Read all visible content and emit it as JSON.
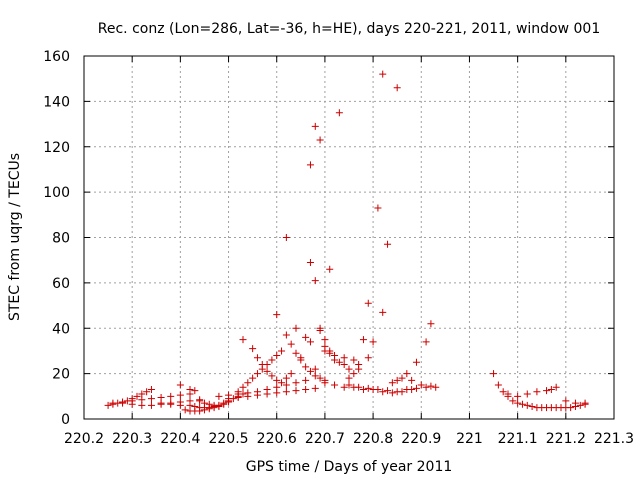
{
  "chart_data": {
    "type": "scatter",
    "title": "Rec. conz (Lon=286, Lat=-36, h=HE), days 220-221, 2011, window 001",
    "xlabel": "GPS time / Days of year 2011",
    "ylabel": "STEC from uqrg / TECUs",
    "xlim": [
      220.2,
      221.3
    ],
    "ylim": [
      0,
      160
    ],
    "x_ticks": [
      220.2,
      220.3,
      220.4,
      220.5,
      220.6,
      220.7,
      220.8,
      220.9,
      221.0,
      221.1,
      221.2,
      221.3
    ],
    "x_tick_labels": [
      "220.2",
      "220.3",
      "220.4",
      "220.5",
      "220.6",
      "220.7",
      "220.8",
      "220.9",
      "221",
      "221.1",
      "221.2",
      "221.3"
    ],
    "y_ticks": [
      0,
      20,
      40,
      60,
      80,
      100,
      120,
      140,
      160
    ],
    "y_tick_labels": [
      "0",
      "20",
      "40",
      "60",
      "80",
      "100",
      "120",
      "140",
      "160"
    ],
    "grid": true,
    "marker": "+",
    "color": "#cc0000",
    "series": [
      {
        "points": [
          [
            220.25,
            6
          ],
          [
            220.26,
            6.5
          ],
          [
            220.27,
            7
          ],
          [
            220.28,
            7.5
          ],
          [
            220.29,
            8
          ],
          [
            220.3,
            9
          ],
          [
            220.31,
            10
          ],
          [
            220.32,
            11
          ],
          [
            220.33,
            12
          ],
          [
            220.34,
            13
          ],
          [
            220.26,
            7
          ],
          [
            220.28,
            7
          ],
          [
            220.3,
            6.5
          ],
          [
            220.32,
            6
          ],
          [
            220.34,
            6
          ],
          [
            220.36,
            6.5
          ],
          [
            220.38,
            7
          ],
          [
            220.4,
            7.5
          ],
          [
            220.42,
            8
          ],
          [
            220.44,
            8.5
          ],
          [
            220.3,
            8
          ],
          [
            220.32,
            8.5
          ],
          [
            220.34,
            9
          ],
          [
            220.36,
            9.5
          ],
          [
            220.38,
            10
          ],
          [
            220.4,
            10.5
          ],
          [
            220.42,
            11
          ],
          [
            220.43,
            12.5
          ],
          [
            220.4,
            15
          ],
          [
            220.42,
            13
          ],
          [
            220.36,
            7
          ],
          [
            220.38,
            6.5
          ],
          [
            220.4,
            6
          ],
          [
            220.42,
            6
          ],
          [
            220.43,
            5.5
          ],
          [
            220.44,
            5
          ],
          [
            220.45,
            5
          ],
          [
            220.46,
            5
          ],
          [
            220.47,
            5.5
          ],
          [
            220.48,
            6
          ],
          [
            220.41,
            4
          ],
          [
            220.42,
            3.5
          ],
          [
            220.43,
            3.5
          ],
          [
            220.44,
            3.5
          ],
          [
            220.45,
            4
          ],
          [
            220.46,
            4.5
          ],
          [
            220.47,
            5
          ],
          [
            220.48,
            5.5
          ],
          [
            220.49,
            6.5
          ],
          [
            220.5,
            7.5
          ],
          [
            220.44,
            8
          ],
          [
            220.45,
            7
          ],
          [
            220.46,
            6.5
          ],
          [
            220.47,
            6
          ],
          [
            220.48,
            6
          ],
          [
            220.49,
            7
          ],
          [
            220.5,
            8
          ],
          [
            220.51,
            9
          ],
          [
            220.52,
            10
          ],
          [
            220.53,
            11
          ],
          [
            220.48,
            10
          ],
          [
            220.5,
            10.5
          ],
          [
            220.52,
            11
          ],
          [
            220.54,
            11.5
          ],
          [
            220.56,
            12
          ],
          [
            220.58,
            13
          ],
          [
            220.6,
            14
          ],
          [
            220.62,
            15
          ],
          [
            220.64,
            16
          ],
          [
            220.66,
            17
          ],
          [
            220.5,
            9
          ],
          [
            220.52,
            9.5
          ],
          [
            220.54,
            10
          ],
          [
            220.56,
            10.5
          ],
          [
            220.58,
            11
          ],
          [
            220.6,
            11.5
          ],
          [
            220.62,
            12
          ],
          [
            220.64,
            12.5
          ],
          [
            220.66,
            13
          ],
          [
            220.68,
            13.5
          ],
          [
            220.52,
            12
          ],
          [
            220.53,
            14
          ],
          [
            220.54,
            16
          ],
          [
            220.55,
            18
          ],
          [
            220.56,
            20
          ],
          [
            220.57,
            22
          ],
          [
            220.58,
            24
          ],
          [
            220.59,
            26
          ],
          [
            220.6,
            28
          ],
          [
            220.61,
            30
          ],
          [
            220.53,
            35
          ],
          [
            220.55,
            31
          ],
          [
            220.56,
            27
          ],
          [
            220.57,
            24
          ],
          [
            220.58,
            21
          ],
          [
            220.59,
            19
          ],
          [
            220.6,
            17
          ],
          [
            220.61,
            16
          ],
          [
            220.62,
            18
          ],
          [
            220.63,
            20
          ],
          [
            220.6,
            46
          ],
          [
            220.62,
            37
          ],
          [
            220.63,
            33
          ],
          [
            220.64,
            29
          ],
          [
            220.65,
            26
          ],
          [
            220.66,
            23
          ],
          [
            220.67,
            21
          ],
          [
            220.68,
            19
          ],
          [
            220.69,
            18
          ],
          [
            220.7,
            17
          ],
          [
            220.62,
            80
          ],
          [
            220.64,
            40
          ],
          [
            220.65,
            27
          ],
          [
            220.66,
            36
          ],
          [
            220.67,
            34
          ],
          [
            220.68,
            22
          ],
          [
            220.69,
            40
          ],
          [
            220.7,
            35
          ],
          [
            220.71,
            30
          ],
          [
            220.72,
            28
          ],
          [
            220.67,
            112
          ],
          [
            220.68,
            61
          ],
          [
            220.69,
            39
          ],
          [
            220.7,
            30
          ],
          [
            220.71,
            29
          ],
          [
            220.72,
            26
          ],
          [
            220.73,
            25
          ],
          [
            220.74,
            24
          ],
          [
            220.75,
            22
          ],
          [
            220.76,
            20
          ],
          [
            220.67,
            69
          ],
          [
            220.68,
            129
          ],
          [
            220.69,
            123
          ],
          [
            220.7,
            32
          ],
          [
            220.71,
            66
          ],
          [
            220.73,
            135
          ],
          [
            220.74,
            27
          ],
          [
            220.75,
            18
          ],
          [
            220.76,
            26
          ],
          [
            220.77,
            24
          ],
          [
            220.7,
            16
          ],
          [
            220.72,
            15
          ],
          [
            220.74,
            14
          ],
          [
            220.76,
            14
          ],
          [
            220.78,
            13
          ],
          [
            220.8,
            13
          ],
          [
            220.82,
            12
          ],
          [
            220.84,
            11.5
          ],
          [
            220.86,
            12
          ],
          [
            220.88,
            13
          ],
          [
            220.78,
            35
          ],
          [
            220.79,
            51
          ],
          [
            220.8,
            34
          ],
          [
            220.81,
            93
          ],
          [
            220.82,
            47
          ],
          [
            220.82,
            152
          ],
          [
            220.83,
            77
          ],
          [
            220.85,
            146
          ],
          [
            220.77,
            22
          ],
          [
            220.79,
            27
          ],
          [
            220.84,
            16
          ],
          [
            220.85,
            17
          ],
          [
            220.86,
            18
          ],
          [
            220.87,
            20
          ],
          [
            220.88,
            17
          ],
          [
            220.89,
            25
          ],
          [
            220.9,
            15
          ],
          [
            220.91,
            34
          ],
          [
            220.92,
            42
          ],
          [
            220.93,
            14
          ],
          [
            220.75,
            15
          ],
          [
            220.77,
            14
          ],
          [
            220.79,
            13.5
          ],
          [
            220.81,
            13
          ],
          [
            220.83,
            12.5
          ],
          [
            220.85,
            12
          ],
          [
            220.87,
            13
          ],
          [
            220.89,
            13.5
          ],
          [
            220.91,
            14
          ],
          [
            220.92,
            14.5
          ],
          [
            221.05,
            20
          ],
          [
            221.06,
            15
          ],
          [
            221.07,
            12
          ],
          [
            221.08,
            10
          ],
          [
            221.09,
            8
          ],
          [
            221.1,
            7
          ],
          [
            221.11,
            6.5
          ],
          [
            221.12,
            6
          ],
          [
            221.13,
            5.5
          ],
          [
            221.14,
            5
          ],
          [
            221.15,
            5
          ],
          [
            221.16,
            5
          ],
          [
            221.17,
            5
          ],
          [
            221.18,
            5
          ],
          [
            221.19,
            5
          ],
          [
            221.2,
            5
          ],
          [
            221.21,
            5
          ],
          [
            221.22,
            5.5
          ],
          [
            221.23,
            6
          ],
          [
            221.24,
            7
          ],
          [
            221.08,
            11
          ],
          [
            221.1,
            10
          ],
          [
            221.12,
            11
          ],
          [
            221.14,
            12
          ],
          [
            221.16,
            12.5
          ],
          [
            221.17,
            13
          ],
          [
            221.18,
            14
          ],
          [
            221.2,
            8
          ],
          [
            221.22,
            7
          ],
          [
            221.24,
            6.5
          ]
        ]
      }
    ]
  }
}
